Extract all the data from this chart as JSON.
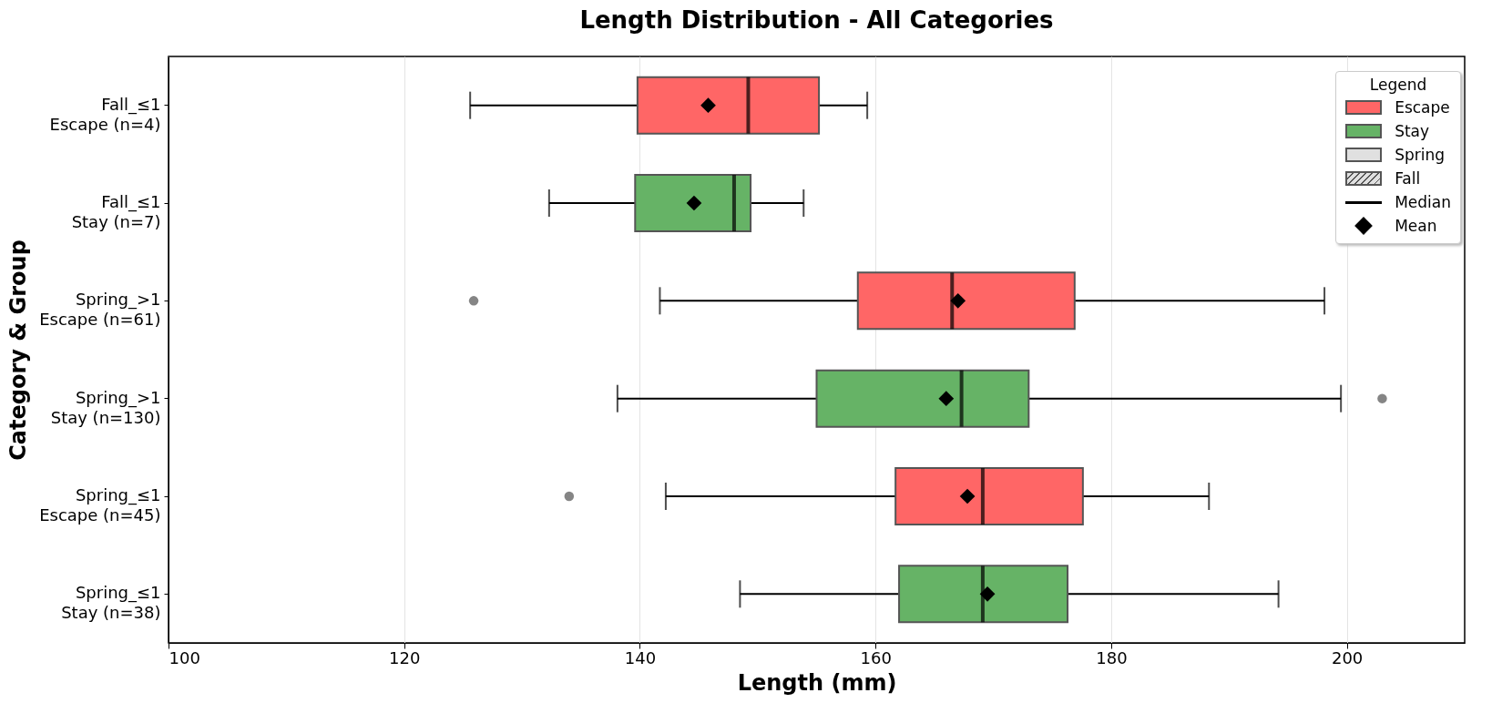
{
  "chart_data": {
    "type": "box",
    "title": "Length Distribution - All Categories",
    "xlabel": "Length (mm)",
    "ylabel": "Category & Group",
    "orientation": "horizontal",
    "categories": [
      "Fall_≤1\nEscape (n=4)",
      "Fall_≤1\nStay (n=7)",
      "Spring_>1\nEscape (n=61)",
      "Spring_>1\nStay (n=130)",
      "Spring_≤1\nEscape (n=45)",
      "Spring_≤1\nStay (n=38)"
    ],
    "series": [
      {
        "name": "Escape",
        "color": "#ff6666",
        "boxes": [
          {
            "low": 125.6,
            "q1": 139.8,
            "median": 149.2,
            "q3": 155.2,
            "high": 159.3,
            "mean": 145.8
          },
          null,
          {
            "low": 141.7,
            "q1": 158.5,
            "median": 166.5,
            "q3": 176.9,
            "high": 198.1,
            "mean": 167.0,
            "outliers": [
              125.9
            ]
          },
          null,
          {
            "low": 142.2,
            "q1": 161.7,
            "median": 169.1,
            "q3": 177.6,
            "high": 188.3,
            "mean": 167.8,
            "outliers": [
              134.0
            ]
          },
          null
        ]
      },
      {
        "name": "Stay",
        "color": "#66b366",
        "boxes": [
          null,
          {
            "low": 132.3,
            "q1": 139.6,
            "median": 148.0,
            "q3": 149.4,
            "high": 153.9,
            "mean": 144.6
          },
          null,
          {
            "low": 138.1,
            "q1": 155.0,
            "median": 167.3,
            "q3": 173.0,
            "high": 199.5,
            "mean": 166.0,
            "outliers": [
              203.0
            ]
          },
          null,
          {
            "low": 148.5,
            "q1": 162.0,
            "median": 169.1,
            "q3": 176.3,
            "high": 194.2,
            "mean": 169.5
          }
        ]
      }
    ],
    "xlim": [
      100,
      210
    ],
    "xticks": [
      100,
      120,
      140,
      160,
      180,
      200
    ],
    "grid": "x",
    "legend": "top right",
    "legend_title": "Legend",
    "annotations": [
      "Spring",
      "Fall",
      "Median",
      "Mean"
    ]
  }
}
